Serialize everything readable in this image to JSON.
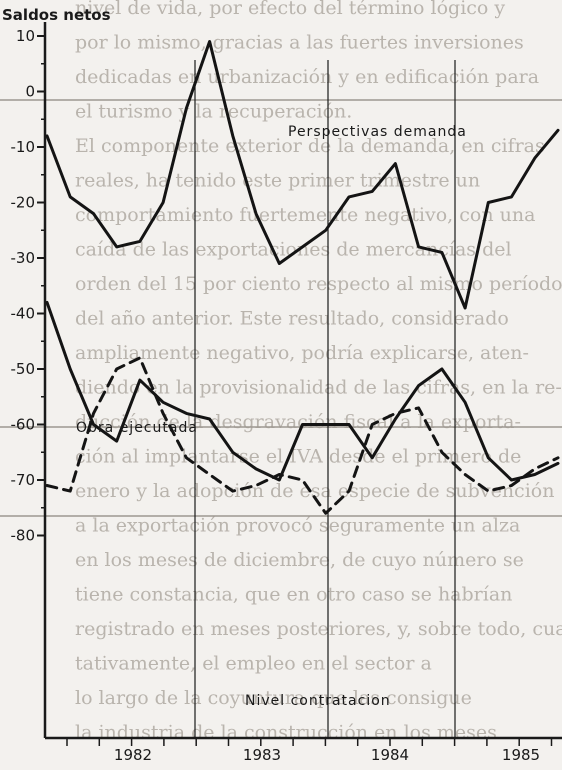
{
  "chart_data": {
    "type": "line",
    "ylabel": "Saldos netos",
    "ylim": [
      -85,
      10
    ],
    "yticks": [
      10,
      0,
      -10,
      -20,
      -30,
      -40,
      -50,
      -60,
      -70,
      -80
    ],
    "x_labels": [
      "1982",
      "1983",
      "1984",
      "1985"
    ],
    "grid": false,
    "series": [
      {
        "name": "Perspectivas demanda",
        "style": "solid",
        "values": [
          -8,
          -19,
          -22,
          -28,
          -27,
          -20,
          -3,
          9,
          -8,
          -22,
          -31,
          -28,
          -25,
          -19,
          -18,
          -13,
          -28,
          -29,
          -39,
          -20,
          -19,
          -12,
          -7
        ]
      },
      {
        "name": "Obra ejecutada",
        "style": "solid",
        "values": [
          -38,
          -50,
          -60,
          -63,
          -52,
          -56,
          -58,
          -59,
          -65,
          -68,
          -70,
          -60,
          -60,
          -60,
          -66,
          -59,
          -53,
          -50,
          -56,
          -66,
          -70,
          -69,
          -67
        ]
      },
      {
        "name": "Nivel contratacion",
        "style": "dashed",
        "values": [
          -71,
          -72,
          -58,
          -50,
          -48,
          -58,
          -66,
          -69,
          -72,
          -71,
          -69,
          -70,
          -76,
          -72,
          -60,
          -58,
          -57,
          -65,
          -69,
          -72,
          -71,
          -68,
          -66
        ]
      }
    ],
    "annotations": [
      "Perspectivas demanda",
      "Obra ejecutada",
      "Nivel contratacion"
    ]
  },
  "background_text": [
    "nivel de vida, por efecto del término lógico y",
    "por lo mismo, gracias a las fuertes inversiones",
    "dedicadas en urbanización y en edificación para",
    "el turismo y la recuperación.",
    "El componente exterior de la demanda, en cifras",
    "reales, ha tenido este primer trimestre un",
    "comportamiento fuertemente negativo, con una",
    "caída de las exportaciones de mercancías del",
    "orden del 15 por ciento respecto al mismo período",
    "del año anterior. Este resultado, considerado",
    "ampliamente negativo, podría explicarse, aten-",
    "diendo en la provisionalidad de las cifras, en la re-",
    "ducción de la desgravación fiscal a la exporta-",
    "ción al implantarse el IVA desde el primero de",
    "enero y la adopción de esa especie de subvención",
    "a la exportación provocó seguramente un alza",
    "en los meses de diciembre, de cuyo número se",
    "tiene constancia, que en otro caso se habrían",
    "registrado en meses posteriores, y, sobre todo, cuali-",
    "tativamente, el empleo en el sector a",
    "lo largo de la coyuntura que las consigue",
    "la industria de la construcción en los meses"
  ]
}
